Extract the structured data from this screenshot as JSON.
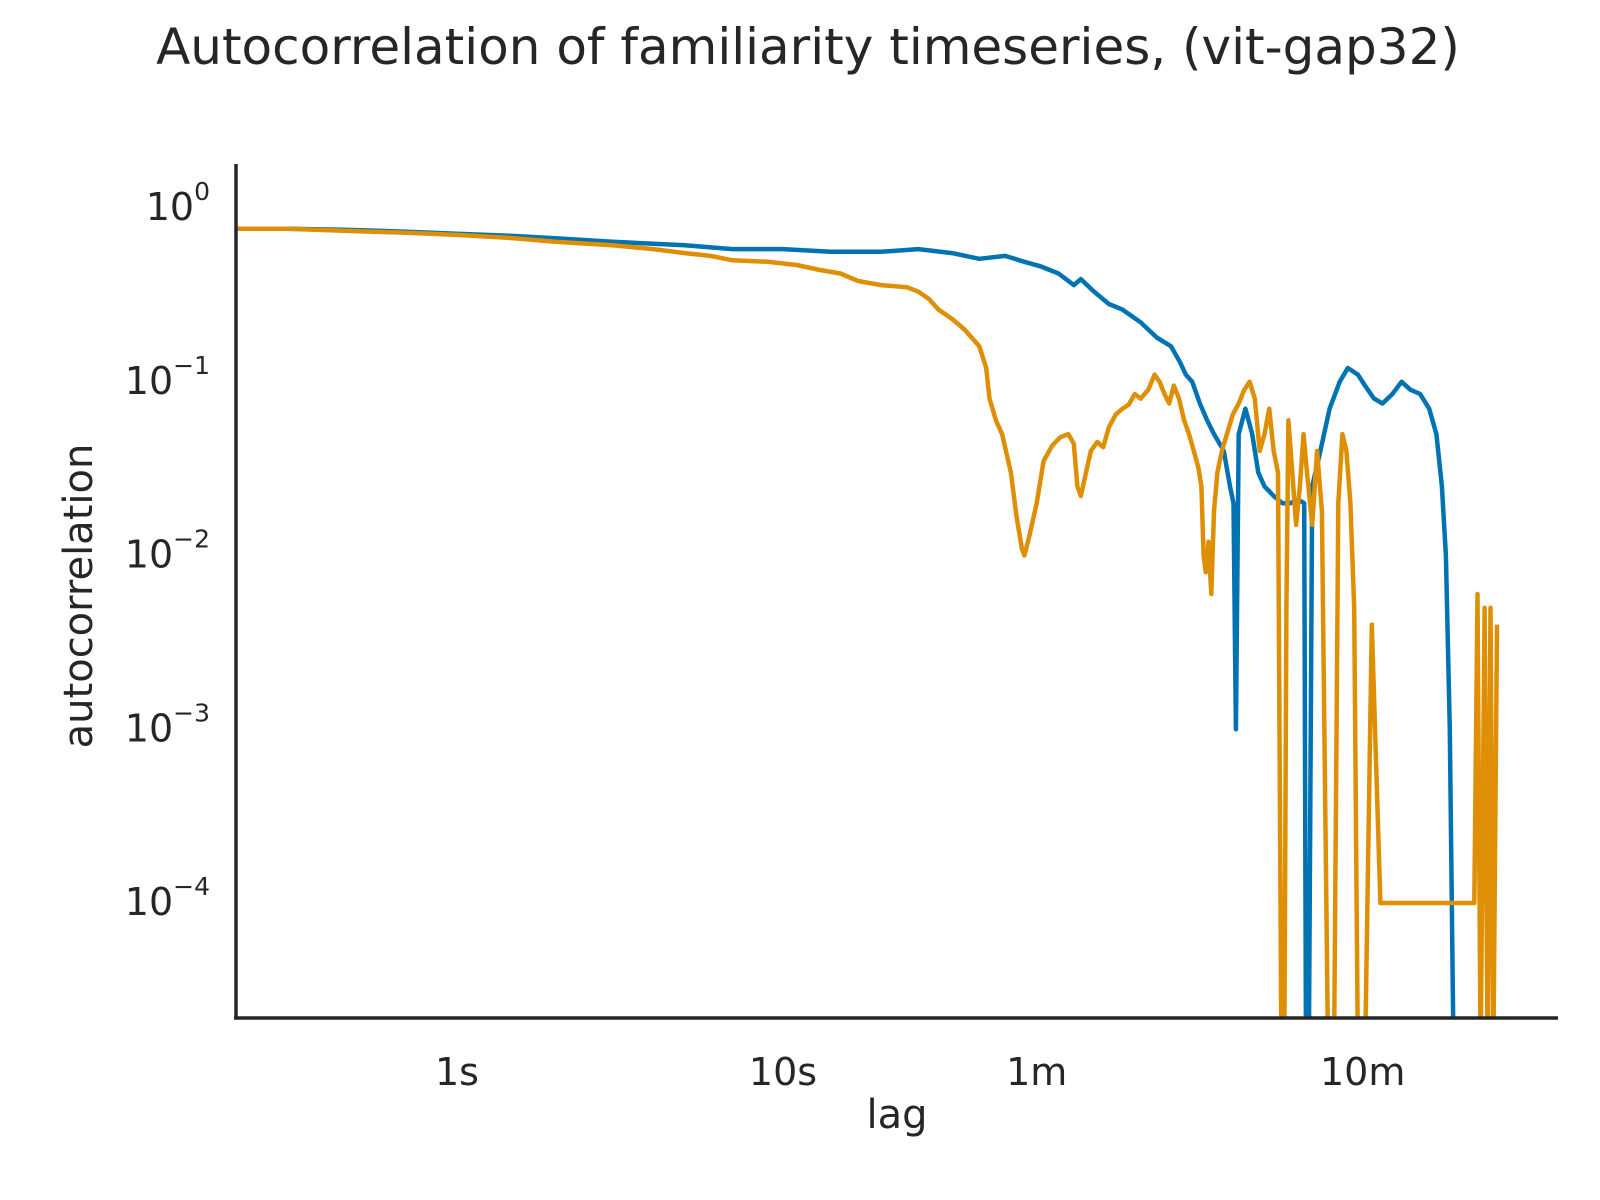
{
  "chart_data": {
    "type": "line",
    "title": "Autocorrelation of familiarity timeseries, (vit-gap32)",
    "xlabel": "lag",
    "ylabel": "autocorrelation",
    "x_scale": "log",
    "y_scale": "log",
    "x_unit": "seconds",
    "xlim": [
      0.2,
      2300
    ],
    "ylim": [
      2e-05,
      1.3
    ],
    "x_ticks": [
      {
        "value": 1,
        "label": "1s"
      },
      {
        "value": 10,
        "label": "10s"
      },
      {
        "value": 60,
        "label": "1m"
      },
      {
        "value": 600,
        "label": "10m"
      }
    ],
    "y_ticks": [
      {
        "value": 1,
        "base": "10",
        "exp": "0"
      },
      {
        "value": 0.1,
        "base": "10",
        "exp": "−1"
      },
      {
        "value": 0.01,
        "base": "10",
        "exp": "−2"
      },
      {
        "value": 0.001,
        "base": "10",
        "exp": "−3"
      },
      {
        "value": 0.0001,
        "base": "10",
        "exp": "−4"
      }
    ],
    "grid": false,
    "legend": "none",
    "series": [
      {
        "color": "#0173b2",
        "points": [
          [
            0.2,
            0.76
          ],
          [
            0.3,
            0.76
          ],
          [
            0.45,
            0.75
          ],
          [
            0.7,
            0.73
          ],
          [
            1,
            0.71
          ],
          [
            1.5,
            0.69
          ],
          [
            2,
            0.67
          ],
          [
            3,
            0.64
          ],
          [
            5,
            0.61
          ],
          [
            7,
            0.58
          ],
          [
            10,
            0.58
          ],
          [
            14,
            0.56
          ],
          [
            20,
            0.56
          ],
          [
            26,
            0.58
          ],
          [
            33,
            0.55
          ],
          [
            40,
            0.51
          ],
          [
            48,
            0.53
          ],
          [
            55,
            0.49
          ],
          [
            62,
            0.46
          ],
          [
            70,
            0.42
          ],
          [
            78,
            0.36
          ],
          [
            82,
            0.39
          ],
          [
            90,
            0.33
          ],
          [
            100,
            0.28
          ],
          [
            110,
            0.26
          ],
          [
            125,
            0.22
          ],
          [
            140,
            0.18
          ],
          [
            155,
            0.16
          ],
          [
            165,
            0.13
          ],
          [
            172,
            0.11
          ],
          [
            180,
            0.1
          ],
          [
            190,
            0.075
          ],
          [
            200,
            0.06
          ],
          [
            210,
            0.05
          ],
          [
            225,
            0.04
          ],
          [
            235,
            0.025
          ],
          [
            241,
            0.02
          ],
          [
            245,
            0.001
          ],
          [
            250,
            0.05
          ],
          [
            262,
            0.07
          ],
          [
            275,
            0.05
          ],
          [
            287,
            0.03
          ],
          [
            300,
            0.025
          ],
          [
            320,
            0.022
          ],
          [
            340,
            0.02
          ],
          [
            360,
            0.02
          ],
          [
            380,
            0.021
          ],
          [
            397,
            0.02
          ],
          [
            402,
            1e-05
          ],
          [
            410,
            1e-05
          ],
          [
            420,
            0.025
          ],
          [
            445,
            0.04
          ],
          [
            475,
            0.07
          ],
          [
            510,
            0.1
          ],
          [
            540,
            0.12
          ],
          [
            580,
            0.11
          ],
          [
            610,
            0.095
          ],
          [
            650,
            0.08
          ],
          [
            690,
            0.075
          ],
          [
            740,
            0.085
          ],
          [
            790,
            0.1
          ],
          [
            840,
            0.09
          ],
          [
            900,
            0.085
          ],
          [
            960,
            0.07
          ],
          [
            1010,
            0.05
          ],
          [
            1050,
            0.025
          ],
          [
            1080,
            0.01
          ],
          [
            1110,
            0.001
          ],
          [
            1140,
            1e-05
          ]
        ]
      },
      {
        "color": "#de8f05",
        "points": [
          [
            0.2,
            0.76
          ],
          [
            0.3,
            0.76
          ],
          [
            0.45,
            0.74
          ],
          [
            0.7,
            0.72
          ],
          [
            1,
            0.7
          ],
          [
            1.5,
            0.67
          ],
          [
            2,
            0.64
          ],
          [
            3,
            0.61
          ],
          [
            4,
            0.58
          ],
          [
            5,
            0.55
          ],
          [
            6,
            0.53
          ],
          [
            7,
            0.5
          ],
          [
            9,
            0.49
          ],
          [
            11,
            0.47
          ],
          [
            13,
            0.44
          ],
          [
            15,
            0.42
          ],
          [
            17,
            0.38
          ],
          [
            20,
            0.36
          ],
          [
            24,
            0.35
          ],
          [
            26,
            0.33
          ],
          [
            28,
            0.3
          ],
          [
            30,
            0.26
          ],
          [
            33,
            0.23
          ],
          [
            36,
            0.2
          ],
          [
            40,
            0.16
          ],
          [
            42,
            0.12
          ],
          [
            43,
            0.08
          ],
          [
            45,
            0.06
          ],
          [
            47,
            0.05
          ],
          [
            50,
            0.03
          ],
          [
            52,
            0.017
          ],
          [
            54,
            0.011
          ],
          [
            55,
            0.01
          ],
          [
            57,
            0.013
          ],
          [
            60,
            0.02
          ],
          [
            63,
            0.035
          ],
          [
            67,
            0.043
          ],
          [
            71,
            0.048
          ],
          [
            75,
            0.05
          ],
          [
            78,
            0.044
          ],
          [
            80,
            0.025
          ],
          [
            82,
            0.022
          ],
          [
            85,
            0.03
          ],
          [
            88,
            0.04
          ],
          [
            92,
            0.045
          ],
          [
            96,
            0.042
          ],
          [
            100,
            0.055
          ],
          [
            105,
            0.065
          ],
          [
            110,
            0.07
          ],
          [
            115,
            0.074
          ],
          [
            120,
            0.085
          ],
          [
            125,
            0.08
          ],
          [
            132,
            0.09
          ],
          [
            138,
            0.11
          ],
          [
            143,
            0.1
          ],
          [
            148,
            0.085
          ],
          [
            153,
            0.075
          ],
          [
            158,
            0.095
          ],
          [
            164,
            0.08
          ],
          [
            170,
            0.06
          ],
          [
            176,
            0.05
          ],
          [
            182,
            0.04
          ],
          [
            188,
            0.032
          ],
          [
            192,
            0.025
          ],
          [
            195,
            0.01
          ],
          [
            198,
            0.008
          ],
          [
            202,
            0.012
          ],
          [
            206,
            0.006
          ],
          [
            210,
            0.018
          ],
          [
            215,
            0.03
          ],
          [
            222,
            0.04
          ],
          [
            230,
            0.05
          ],
          [
            240,
            0.065
          ],
          [
            250,
            0.075
          ],
          [
            260,
            0.09
          ],
          [
            270,
            0.1
          ],
          [
            280,
            0.08
          ],
          [
            290,
            0.04
          ],
          [
            300,
            0.05
          ],
          [
            310,
            0.07
          ],
          [
            320,
            0.04
          ],
          [
            330,
            0.03
          ],
          [
            338,
            1e-05
          ],
          [
            345,
            1e-05
          ],
          [
            350,
            0.005
          ],
          [
            355,
            0.06
          ],
          [
            365,
            0.03
          ],
          [
            375,
            0.015
          ],
          [
            385,
            0.025
          ],
          [
            395,
            0.05
          ],
          [
            405,
            0.03
          ],
          [
            420,
            0.015
          ],
          [
            435,
            0.04
          ],
          [
            450,
            0.018
          ],
          [
            470,
            1e-05
          ],
          [
            490,
            1e-05
          ],
          [
            505,
            0.02
          ],
          [
            520,
            0.05
          ],
          [
            535,
            0.04
          ],
          [
            550,
            0.02
          ],
          [
            565,
            0.005
          ],
          [
            580,
            1e-05
          ],
          [
            610,
            1e-05
          ],
          [
            640,
            0.004
          ],
          [
            680,
            0.0001
          ],
          [
            730,
            0.0001
          ],
          [
            1320,
            0.0001
          ],
          [
            1350,
            0.006
          ],
          [
            1380,
            1e-05
          ],
          [
            1420,
            0.005
          ],
          [
            1450,
            1e-05
          ],
          [
            1480,
            0.005
          ],
          [
            1510,
            1e-05
          ],
          [
            1550,
            0.004
          ]
        ]
      }
    ]
  }
}
